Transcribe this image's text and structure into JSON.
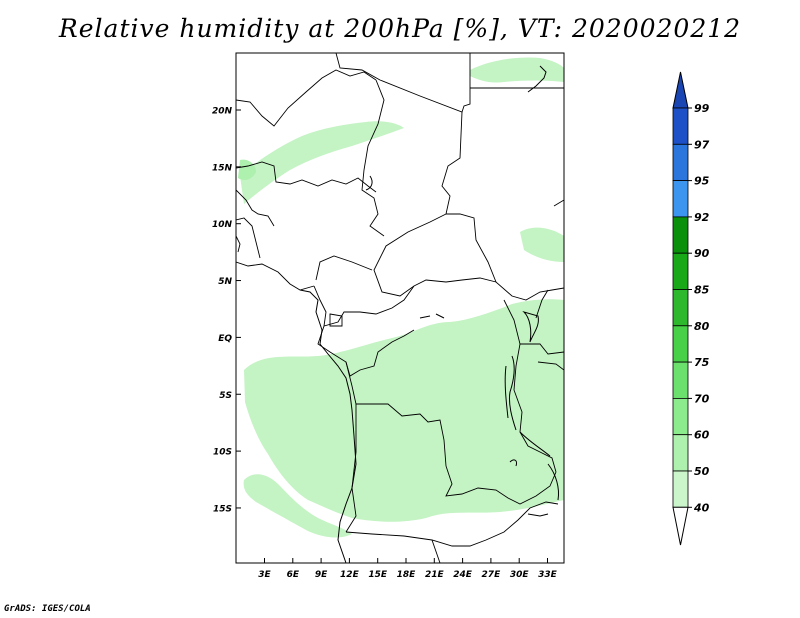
{
  "title": "Relative humidity at 200hPa [%], VT: 2020020212",
  "credit": "GrADS: IGES/COLA",
  "map": {
    "lat_ticks": [
      "20N",
      "15N",
      "10N",
      "5N",
      "EQ",
      "5S",
      "10S",
      "15S"
    ],
    "lon_ticks": [
      "3E",
      "6E",
      "9E",
      "12E",
      "15E",
      "18E",
      "21E",
      "24E",
      "27E",
      "30E",
      "33E"
    ]
  },
  "colorbar": {
    "labels": [
      "99",
      "97",
      "95",
      "92",
      "90",
      "85",
      "80",
      "75",
      "70",
      "60",
      "50",
      "40"
    ],
    "colors": [
      "#1e50c8",
      "#2a76dc",
      "#3c96f0",
      "#0a900a",
      "#18a818",
      "#2eb82e",
      "#48d048",
      "#6ce06c",
      "#8ceb8c",
      "#aef0ae",
      "#cbf6cb",
      "#e6fbe6"
    ],
    "top_color": "#1a46b4"
  }
}
